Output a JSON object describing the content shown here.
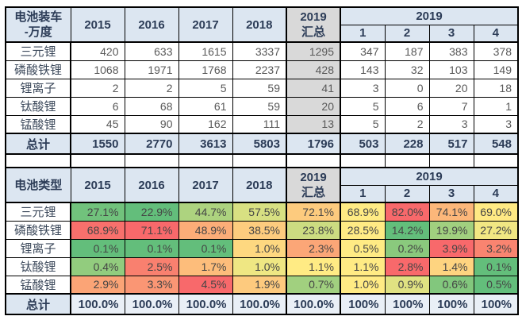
{
  "colors": {
    "header_bg": "#DCE6F1",
    "summary_bg": "#D9D9D9",
    "total_row_bg": "#DCE6F1",
    "total_row_values_bg_bottom": "#E9EFF6",
    "border": "#000000",
    "header_text": "#2C3C57",
    "label_text": "#3D4A5C",
    "value_text": "#595959",
    "scale_min_green": "#63BE7B",
    "scale_mid_yellow": "#FFEB84",
    "scale_max_red": "#F8696B"
  },
  "chart_data": [
    {
      "type": "table",
      "title_line1": "电池装车",
      "title_line2": "-万度",
      "years": [
        "2015",
        "2016",
        "2017",
        "2018"
      ],
      "summary_line1": "2019",
      "summary_line2": "汇总",
      "group_label": "2019",
      "months": [
        "1",
        "2",
        "3",
        "4"
      ],
      "color_scale": false,
      "rows": [
        {
          "label": "三元锂",
          "cells": [
            "420",
            "633",
            "1615",
            "3337",
            "1295",
            "347",
            "187",
            "383",
            "378"
          ]
        },
        {
          "label": "磷酸铁锂",
          "cells": [
            "1068",
            "1971",
            "1768",
            "2237",
            "428",
            "143",
            "32",
            "103",
            "149"
          ]
        },
        {
          "label": "锂离子",
          "cells": [
            "2",
            "2",
            "5",
            "59",
            "41",
            "3",
            "0",
            "20",
            "18"
          ]
        },
        {
          "label": "钛酸锂",
          "cells": [
            "6",
            "68",
            "61",
            "59",
            "20",
            "5",
            "6",
            "7",
            "1"
          ]
        },
        {
          "label": "锰酸锂",
          "cells": [
            "45",
            "90",
            "162",
            "111",
            "13",
            "5",
            "2",
            "3",
            "3"
          ]
        }
      ],
      "total": {
        "label": "总计",
        "cells": [
          "1550",
          "2770",
          "3613",
          "5803",
          "1796",
          "503",
          "228",
          "517",
          "548"
        ]
      }
    },
    {
      "type": "table",
      "title_line1": "电池类型",
      "title_line2": "",
      "years": [
        "2015",
        "2016",
        "2017",
        "2018"
      ],
      "summary_line1": "2019",
      "summary_line2": "汇总",
      "group_label": "2019",
      "months": [
        "1",
        "2",
        "3",
        "4"
      ],
      "color_scale": true,
      "rows": [
        {
          "label": "三元锂",
          "cells": [
            "27.1%",
            "22.9%",
            "44.7%",
            "57.5%",
            "72.1%",
            "68.9%",
            "82.0%",
            "74.1%",
            "69.0%"
          ]
        },
        {
          "label": "磷酸铁锂",
          "cells": [
            "68.9%",
            "71.1%",
            "48.9%",
            "38.5%",
            "23.8%",
            "28.5%",
            "14.2%",
            "19.9%",
            "27.2%"
          ]
        },
        {
          "label": "锂离子",
          "cells": [
            "0.1%",
            "0.1%",
            "0.1%",
            "1.0%",
            "2.3%",
            "0.5%",
            "0.2%",
            "3.9%",
            "3.2%"
          ]
        },
        {
          "label": "钛酸锂",
          "cells": [
            "0.4%",
            "2.5%",
            "1.7%",
            "1.0%",
            "1.1%",
            "1.1%",
            "2.8%",
            "1.4%",
            "0.1%"
          ]
        },
        {
          "label": "锰酸锂",
          "cells": [
            "2.9%",
            "3.3%",
            "4.5%",
            "1.9%",
            "0.7%",
            "1.0%",
            "0.9%",
            "0.6%",
            "0.5%"
          ]
        }
      ],
      "total": {
        "label": "总计",
        "cells": [
          "100.0%",
          "100.0%",
          "100.0%",
          "100.0%",
          "100.0%",
          "100%",
          "100%",
          "100%",
          "100%"
        ]
      }
    }
  ]
}
